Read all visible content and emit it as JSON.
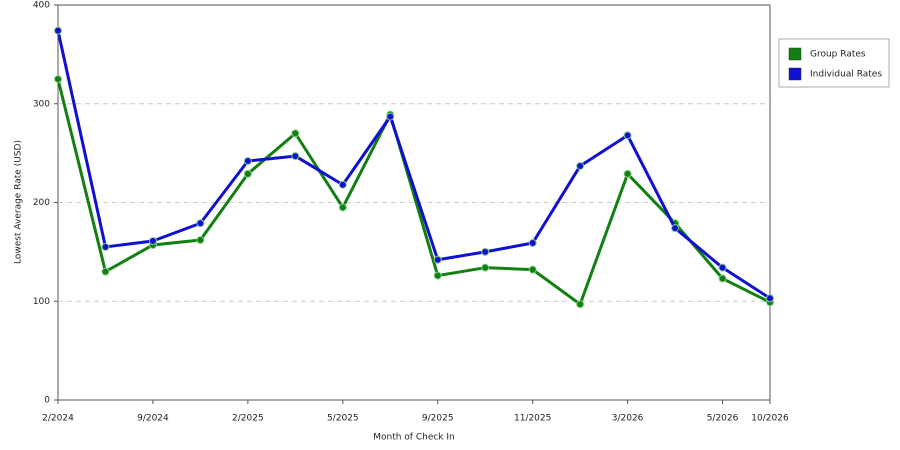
{
  "chart_data": {
    "type": "line",
    "x_label": "Month of Check In",
    "y_label": "Lowest Average Rate (USD)",
    "categories": [
      "2/2024",
      null,
      "9/2024",
      null,
      "2/2025",
      null,
      "5/2025",
      null,
      "9/2025",
      null,
      "11/2025",
      null,
      "3/2026",
      null,
      "5/2026",
      "10/2026"
    ],
    "series": [
      {
        "name": "Group Rates",
        "color": "#108010",
        "values": [
          325,
          130,
          157,
          162,
          229,
          270,
          195,
          289,
          126,
          134,
          132,
          97,
          229,
          179,
          123,
          99
        ]
      },
      {
        "name": "Individual Rates",
        "color": "#1010d0",
        "values": [
          374,
          155,
          161,
          179,
          242,
          247,
          218,
          287,
          142,
          150,
          159,
          237,
          268,
          174,
          134,
          103
        ]
      }
    ],
    "ylim": [
      0,
      400
    ],
    "yticks": [
      0,
      100,
      200,
      300,
      400
    ],
    "grid": true
  }
}
